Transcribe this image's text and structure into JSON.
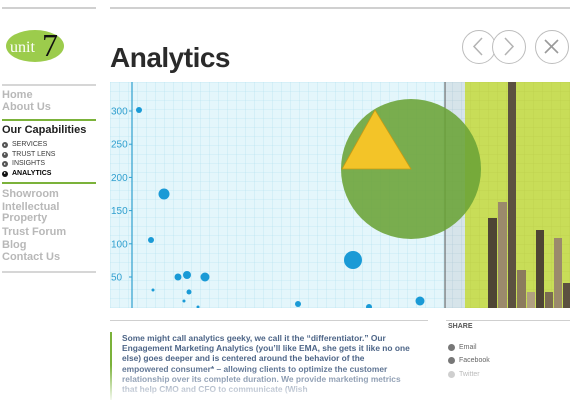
{
  "logo": {
    "text_unit": "unit",
    "text_7": "7"
  },
  "nav": {
    "home": "Home",
    "about": "About Us",
    "capabilities": "Our Capabilities",
    "sub_items": [
      "SERVICES",
      "TRUST LENS",
      "INSIGHTS",
      "ANALYTICS"
    ],
    "showroom": "Showroom",
    "intellectual_property_1": "Intellectual",
    "intellectual_property_2": "Property",
    "trust_forum": "Trust Forum",
    "blog": "Blog",
    "contact": "Contact Us"
  },
  "page": {
    "title": "Analytics"
  },
  "hero": {
    "y_ticks": [
      "300",
      "250",
      "200",
      "150",
      "100",
      "50"
    ],
    "colors": {
      "grid_bg": "#e4f6fb",
      "grid_line": "#aee0ee",
      "axis": "#2f9fcf",
      "dot": "#1a9ad6",
      "pie_green": "#6aa336",
      "pie_yellow": "#f3c428",
      "bars_bg": "#c8dd58"
    }
  },
  "body": {
    "text": "Some might call analytics geeky, we call it the “differentiator.” Our Engagement Marketing Analytics (you’ll like EMA, she gets it like no one else) goes deeper and is centered around the behavior of the empowered consumer* – allowing clients to optimize the customer relationship over its complete duration. We provide marketing metrics that help CMO and CFO to communicate (Wish"
  },
  "share": {
    "title": "SHARE",
    "items": [
      "Email",
      "Facebook",
      "Twitter"
    ]
  },
  "icons": [
    "arrow-left-icon",
    "arrow-right-icon",
    "close-icon",
    "arrow-bullet-icon",
    "email-icon",
    "facebook-icon",
    "twitter-icon"
  ]
}
